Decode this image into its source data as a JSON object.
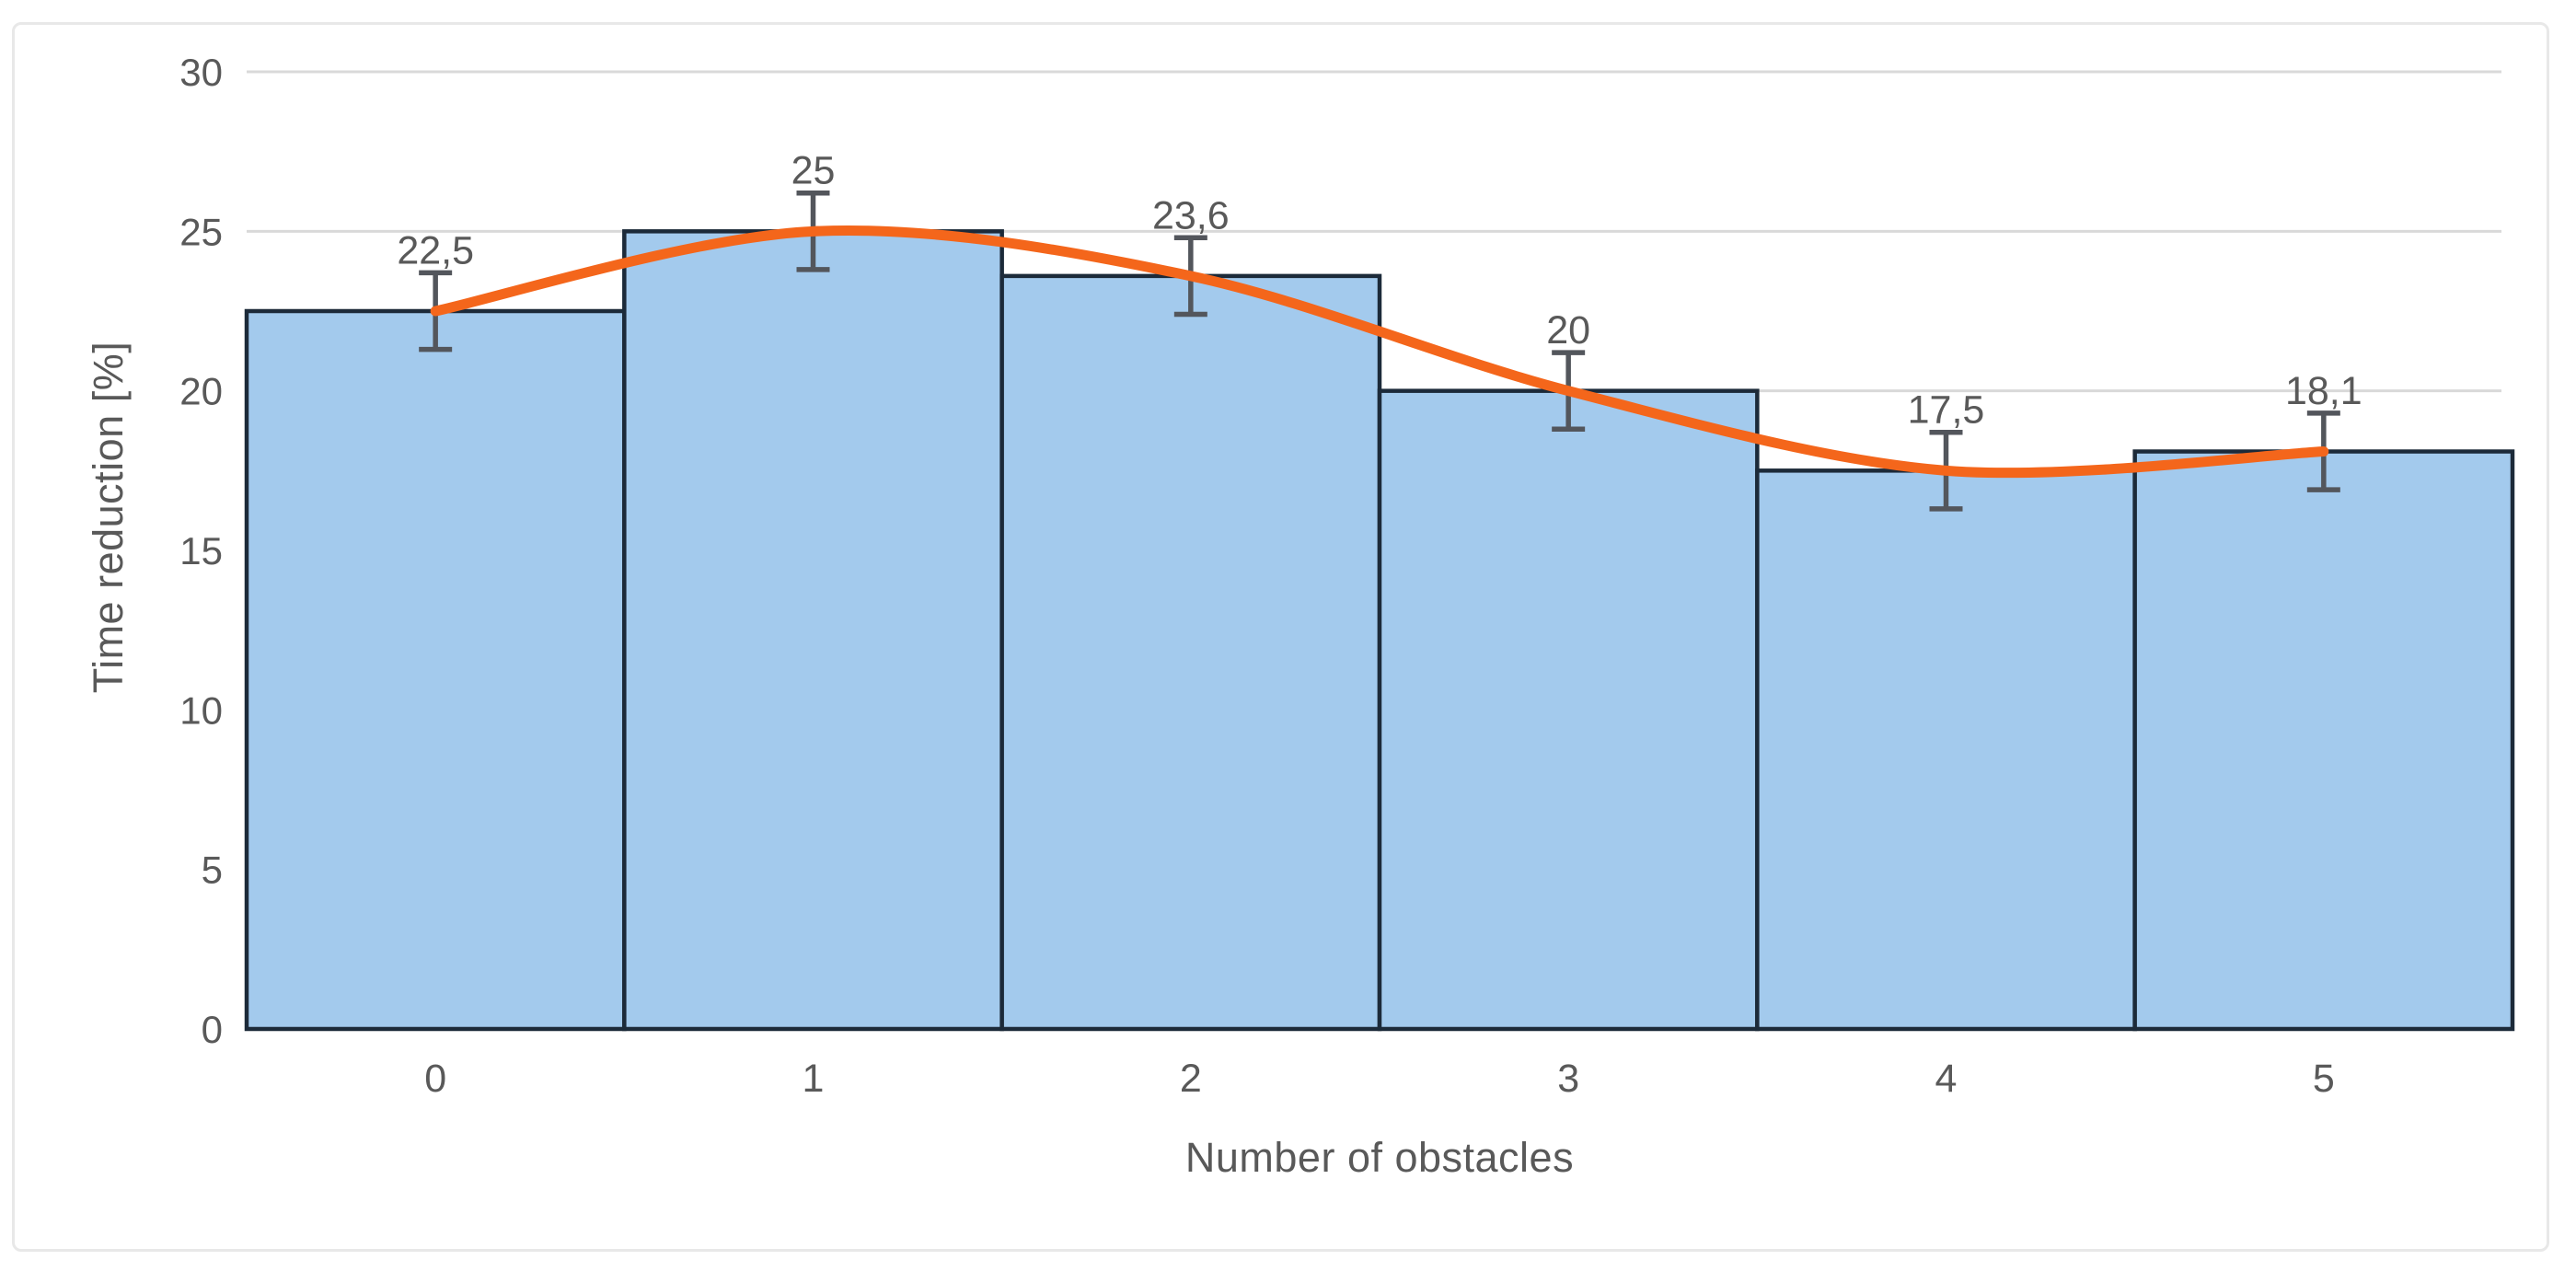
{
  "chart_data": {
    "type": "bar",
    "title": "",
    "xlabel": "Number of obstacles",
    "ylabel": "Time reduction [%]",
    "categories": [
      "0",
      "1",
      "2",
      "3",
      "4",
      "5"
    ],
    "series": [
      {
        "name": "time-reduction-bars",
        "type": "bar",
        "values": [
          22.5,
          25,
          23.6,
          20,
          17.5,
          18.1
        ]
      },
      {
        "name": "trend-line",
        "type": "line",
        "values": [
          22.5,
          25,
          23.6,
          20,
          17.5,
          18.1
        ]
      }
    ],
    "data_labels": [
      "22,5",
      "25",
      "23,6",
      "20",
      "17,5",
      "18,1"
    ],
    "error_bars": {
      "plus": 1.2,
      "minus": 1.2
    },
    "ylim": [
      0,
      30
    ],
    "ytick_step": 5,
    "ytick_labels": [
      "0",
      "5",
      "10",
      "15",
      "20",
      "25",
      "30"
    ],
    "grid": true,
    "legend_position": "none",
    "colors": {
      "bar_fill": "#a3caed",
      "bar_border": "#1c2a39",
      "trend_line": "#f4661b",
      "error_bar": "#53565c",
      "gridline": "#d9d9d9",
      "text": "#595959",
      "card_border": "#e8e8e8",
      "background": "#ffffff"
    }
  }
}
